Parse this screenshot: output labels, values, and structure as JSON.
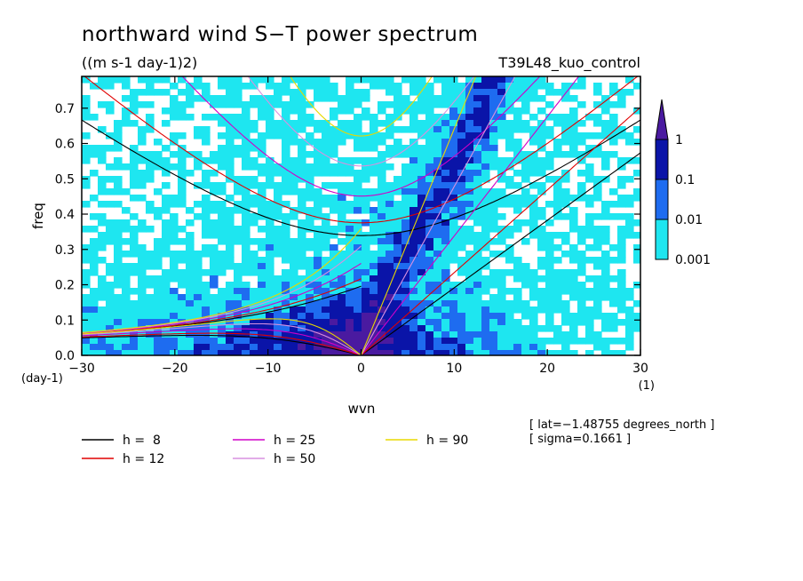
{
  "chart_data": {
    "type": "heatmap",
    "title": "northward wind S−T power spectrum",
    "units": "((m s-1 day-1)2)",
    "run_label": "T39L48_kuo_control",
    "xlabel": "wvn",
    "ylabel": "freq",
    "x_unit": "(1)",
    "y_unit": "(day-1)",
    "xlim": [
      -30,
      30
    ],
    "ylim": [
      0,
      0.79
    ],
    "x_ticks": [
      -30,
      -20,
      -10,
      0,
      10,
      20,
      30
    ],
    "x_tick_labels": [
      "−30",
      "−20",
      "−10",
      "0",
      "10",
      "20",
      "30"
    ],
    "y_ticks": [
      0,
      0.1,
      0.2,
      0.3,
      0.4,
      0.5,
      0.6,
      0.7
    ],
    "y_tick_labels": [
      "0.0",
      "0.1",
      "0.2",
      "0.3",
      "0.4",
      "0.5",
      "0.6",
      "0.7"
    ],
    "contour_levels": [
      0.001,
      0.01,
      0.1,
      1
    ],
    "colorbar": {
      "labels": [
        "1",
        "0.1",
        "0.01",
        "0.001"
      ],
      "colors": [
        "#4a1aa0",
        "#0a14a8",
        "#1e6cf0",
        "#1ee6f0"
      ]
    },
    "dispersion_curves": [
      {
        "label": "h =  8",
        "h": 8,
        "color": "#000000"
      },
      {
        "label": "h = 12",
        "h": 12,
        "color": "#e00000"
      },
      {
        "label": "h = 25",
        "h": 25,
        "color": "#d000c8"
      },
      {
        "label": "h = 50",
        "h": 50,
        "color": "#d890e0"
      },
      {
        "label": "h = 90",
        "h": 90,
        "color": "#e8d800"
      }
    ],
    "annotations": [
      "[ lat=−1.48755 degrees_north ]",
      "[ sigma=0.1661 ]"
    ]
  }
}
